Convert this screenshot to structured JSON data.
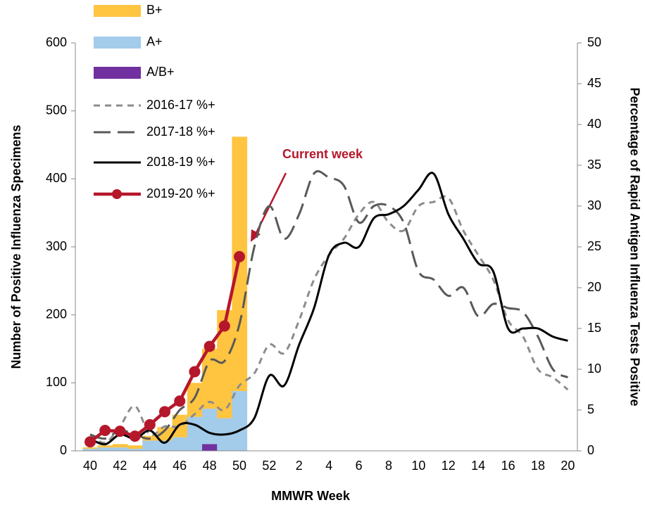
{
  "chart_data": {
    "type": "bar-line",
    "xlabel": "MMWR Week",
    "ylabel": "Number of Positive Influenza Specimens",
    "y2label": "Percentage of Rapid Antigen Influenza Tests Positive",
    "annotation": "Current week",
    "categories": [
      "40",
      null,
      "42",
      null,
      "44",
      null,
      "46",
      null,
      "48",
      null,
      "50",
      null,
      "52",
      null,
      "2",
      null,
      "4",
      null,
      "6",
      null,
      "8",
      null,
      "10",
      null,
      "12",
      null,
      "14",
      null,
      "16",
      null,
      "18",
      null,
      "20"
    ],
    "ylim": [
      0,
      600
    ],
    "yticks": [
      0,
      100,
      200,
      300,
      400,
      500,
      600
    ],
    "y2lim": [
      0,
      50
    ],
    "y2ticks": [
      0,
      5,
      10,
      15,
      20,
      25,
      30,
      35,
      40,
      45,
      50
    ],
    "grid": false,
    "series": [
      {
        "name": "B+",
        "type": "bar",
        "color": "#ffc440",
        "values": [
          2,
          3,
          5,
          5,
          7,
          20,
          33,
          50,
          88,
          159,
          374,
          null,
          null,
          null,
          null,
          null,
          null,
          null,
          null,
          null,
          null,
          null,
          null,
          null,
          null,
          null,
          null,
          null,
          null,
          null,
          null,
          null,
          null
        ]
      },
      {
        "name": "A+",
        "type": "bar",
        "color": "#a3cbea",
        "values": [
          3,
          5,
          5,
          3,
          15,
          15,
          20,
          50,
          52,
          48,
          88,
          null,
          null,
          null,
          null,
          null,
          null,
          null,
          null,
          null,
          null,
          null,
          null,
          null,
          null,
          null,
          null,
          null,
          null,
          null,
          null,
          null,
          null
        ]
      },
      {
        "name": "A/B+",
        "type": "bar",
        "color": "#7030a0",
        "values": [
          0,
          0,
          0,
          0,
          0,
          0,
          0,
          0,
          10,
          0,
          0,
          null,
          null,
          null,
          null,
          null,
          null,
          null,
          null,
          null,
          null,
          null,
          null,
          null,
          null,
          null,
          null,
          null,
          null,
          null,
          null,
          null,
          null
        ]
      },
      {
        "name": "2016-17 %+",
        "type": "line",
        "axis": "y2",
        "color": "#8c8c8c",
        "dash": "short",
        "values": [
          2,
          1,
          3,
          5.5,
          2,
          3,
          3,
          4.5,
          6,
          5,
          8,
          9.5,
          13,
          12,
          16,
          21,
          24,
          26,
          29,
          30.5,
          28,
          27,
          30,
          30.5,
          31,
          27,
          24,
          21,
          16,
          14,
          10,
          9,
          7.5
        ]
      },
      {
        "name": "2017-18 %+",
        "type": "line",
        "axis": "y2",
        "color": "#595959",
        "dash": "long",
        "values": [
          2,
          1.5,
          2.5,
          2,
          1.5,
          2.5,
          5,
          6.5,
          11,
          11,
          15.5,
          25,
          30,
          26,
          29,
          34,
          33.5,
          32.5,
          28,
          30,
          30,
          28,
          22,
          21,
          19,
          20,
          16.5,
          18,
          17.5,
          17,
          14,
          10,
          9
        ]
      },
      {
        "name": "2018-19 %+",
        "type": "line",
        "axis": "y2",
        "color": "#000000",
        "values": [
          1.5,
          0.8,
          2,
          1.5,
          2.5,
          1,
          3.2,
          3.2,
          2.2,
          2,
          2.5,
          4,
          9.2,
          8,
          13,
          17.5,
          24,
          25.5,
          25,
          28.5,
          29,
          30,
          32,
          34,
          29,
          26,
          23,
          22,
          15,
          15,
          15,
          14,
          13.5
        ]
      },
      {
        "name": "2019-20 %+",
        "type": "line",
        "axis": "y2",
        "color": "#b5172b",
        "markers": true,
        "values": [
          1.1,
          2.5,
          2.4,
          1.8,
          3.2,
          4.8,
          6.1,
          9.7,
          12.8,
          15.3,
          23.8,
          null,
          null,
          null,
          null,
          null,
          null,
          null,
          null,
          null,
          null,
          null,
          null,
          null,
          null,
          null,
          null,
          null,
          null,
          null,
          null,
          null,
          null
        ]
      }
    ]
  }
}
